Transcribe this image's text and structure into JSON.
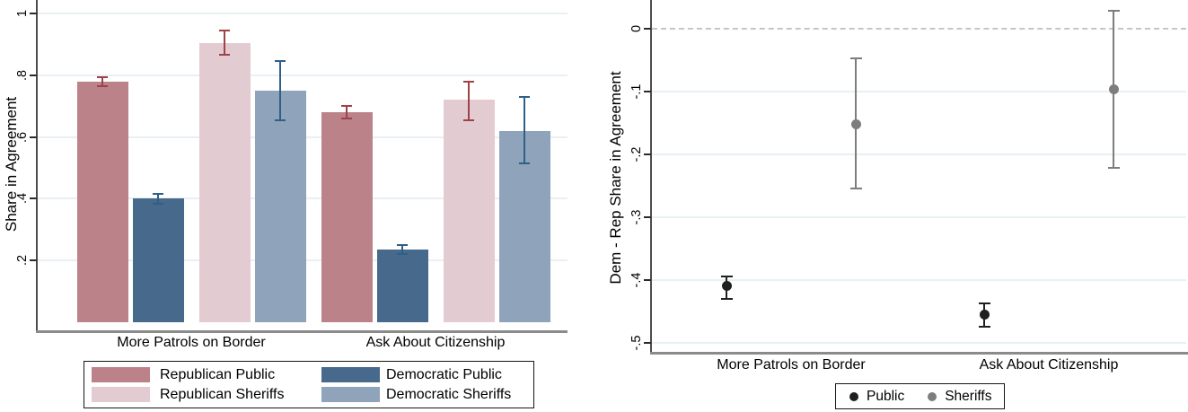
{
  "chart_data": [
    {
      "type": "bar",
      "panel": "left",
      "title": "",
      "xlabel": "",
      "ylabel": "Share in Agreement",
      "ylim": [
        0,
        1
      ],
      "grid": true,
      "legend_position": "bottom",
      "yticks": [
        {
          "value": 1.0,
          "label": "1"
        },
        {
          "value": 0.8,
          "label": ".8"
        },
        {
          "value": 0.6,
          "label": ".6"
        },
        {
          "value": 0.4,
          "label": ".4"
        },
        {
          "value": 0.2,
          "label": ".2"
        }
      ],
      "categories": [
        "More Patrols on Border",
        "Ask About Citizenship"
      ],
      "series": [
        {
          "name": "Republican Public",
          "color": "#bb8389",
          "error_color": "#9e4149",
          "values": [
            0.78,
            0.68
          ],
          "ci_low": [
            0.765,
            0.66
          ],
          "ci_high": [
            0.795,
            0.7
          ]
        },
        {
          "name": "Democratic Public",
          "color": "#46698c",
          "error_color": "#2f5f87",
          "values": [
            0.4,
            0.235
          ],
          "ci_low": [
            0.385,
            0.22
          ],
          "ci_high": [
            0.415,
            0.25
          ]
        },
        {
          "name": "Republican Sheriffs",
          "color": "#e3ccd1",
          "error_color": "#9e4149",
          "values": [
            0.905,
            0.72
          ],
          "ci_low": [
            0.865,
            0.655
          ],
          "ci_high": [
            0.945,
            0.78
          ]
        },
        {
          "name": "Democratic Sheriffs",
          "color": "#8fa4ba",
          "error_color": "#2f5f87",
          "values": [
            0.75,
            0.62
          ],
          "ci_low": [
            0.655,
            0.515
          ],
          "ci_high": [
            0.845,
            0.73
          ]
        }
      ],
      "legend_columns": [
        [
          "Republican Public",
          "Republican Sheriffs"
        ],
        [
          "Democratic Public",
          "Democratic Sheriffs"
        ]
      ]
    },
    {
      "type": "scatter",
      "panel": "right",
      "title": "",
      "xlabel": "",
      "ylabel": "Dem - Rep Share in Agreement",
      "ylim": [
        -0.52,
        0.04
      ],
      "grid": true,
      "legend_position": "bottom",
      "reference_line": {
        "value": 0,
        "style": "dashed"
      },
      "yticks": [
        {
          "value": 0.0,
          "label": "0"
        },
        {
          "value": -0.1,
          "label": "-.1"
        },
        {
          "value": -0.2,
          "label": "-.2"
        },
        {
          "value": -0.3,
          "label": "-.3"
        },
        {
          "value": -0.4,
          "label": "-.4"
        },
        {
          "value": -0.5,
          "label": "-.5"
        }
      ],
      "categories": [
        "More Patrols on Border",
        "Ask About Citizenship"
      ],
      "series": [
        {
          "name": "Public",
          "color": "#1f1f1f",
          "values": [
            -0.41,
            -0.455
          ],
          "ci_low": [
            -0.43,
            -0.475
          ],
          "ci_high": [
            -0.395,
            -0.438
          ]
        },
        {
          "name": "Sheriffs",
          "color": "#7d7d7d",
          "values": [
            -0.152,
            -0.097
          ],
          "ci_low": [
            -0.255,
            -0.222
          ],
          "ci_high": [
            -0.048,
            0.028
          ]
        }
      ]
    }
  ]
}
